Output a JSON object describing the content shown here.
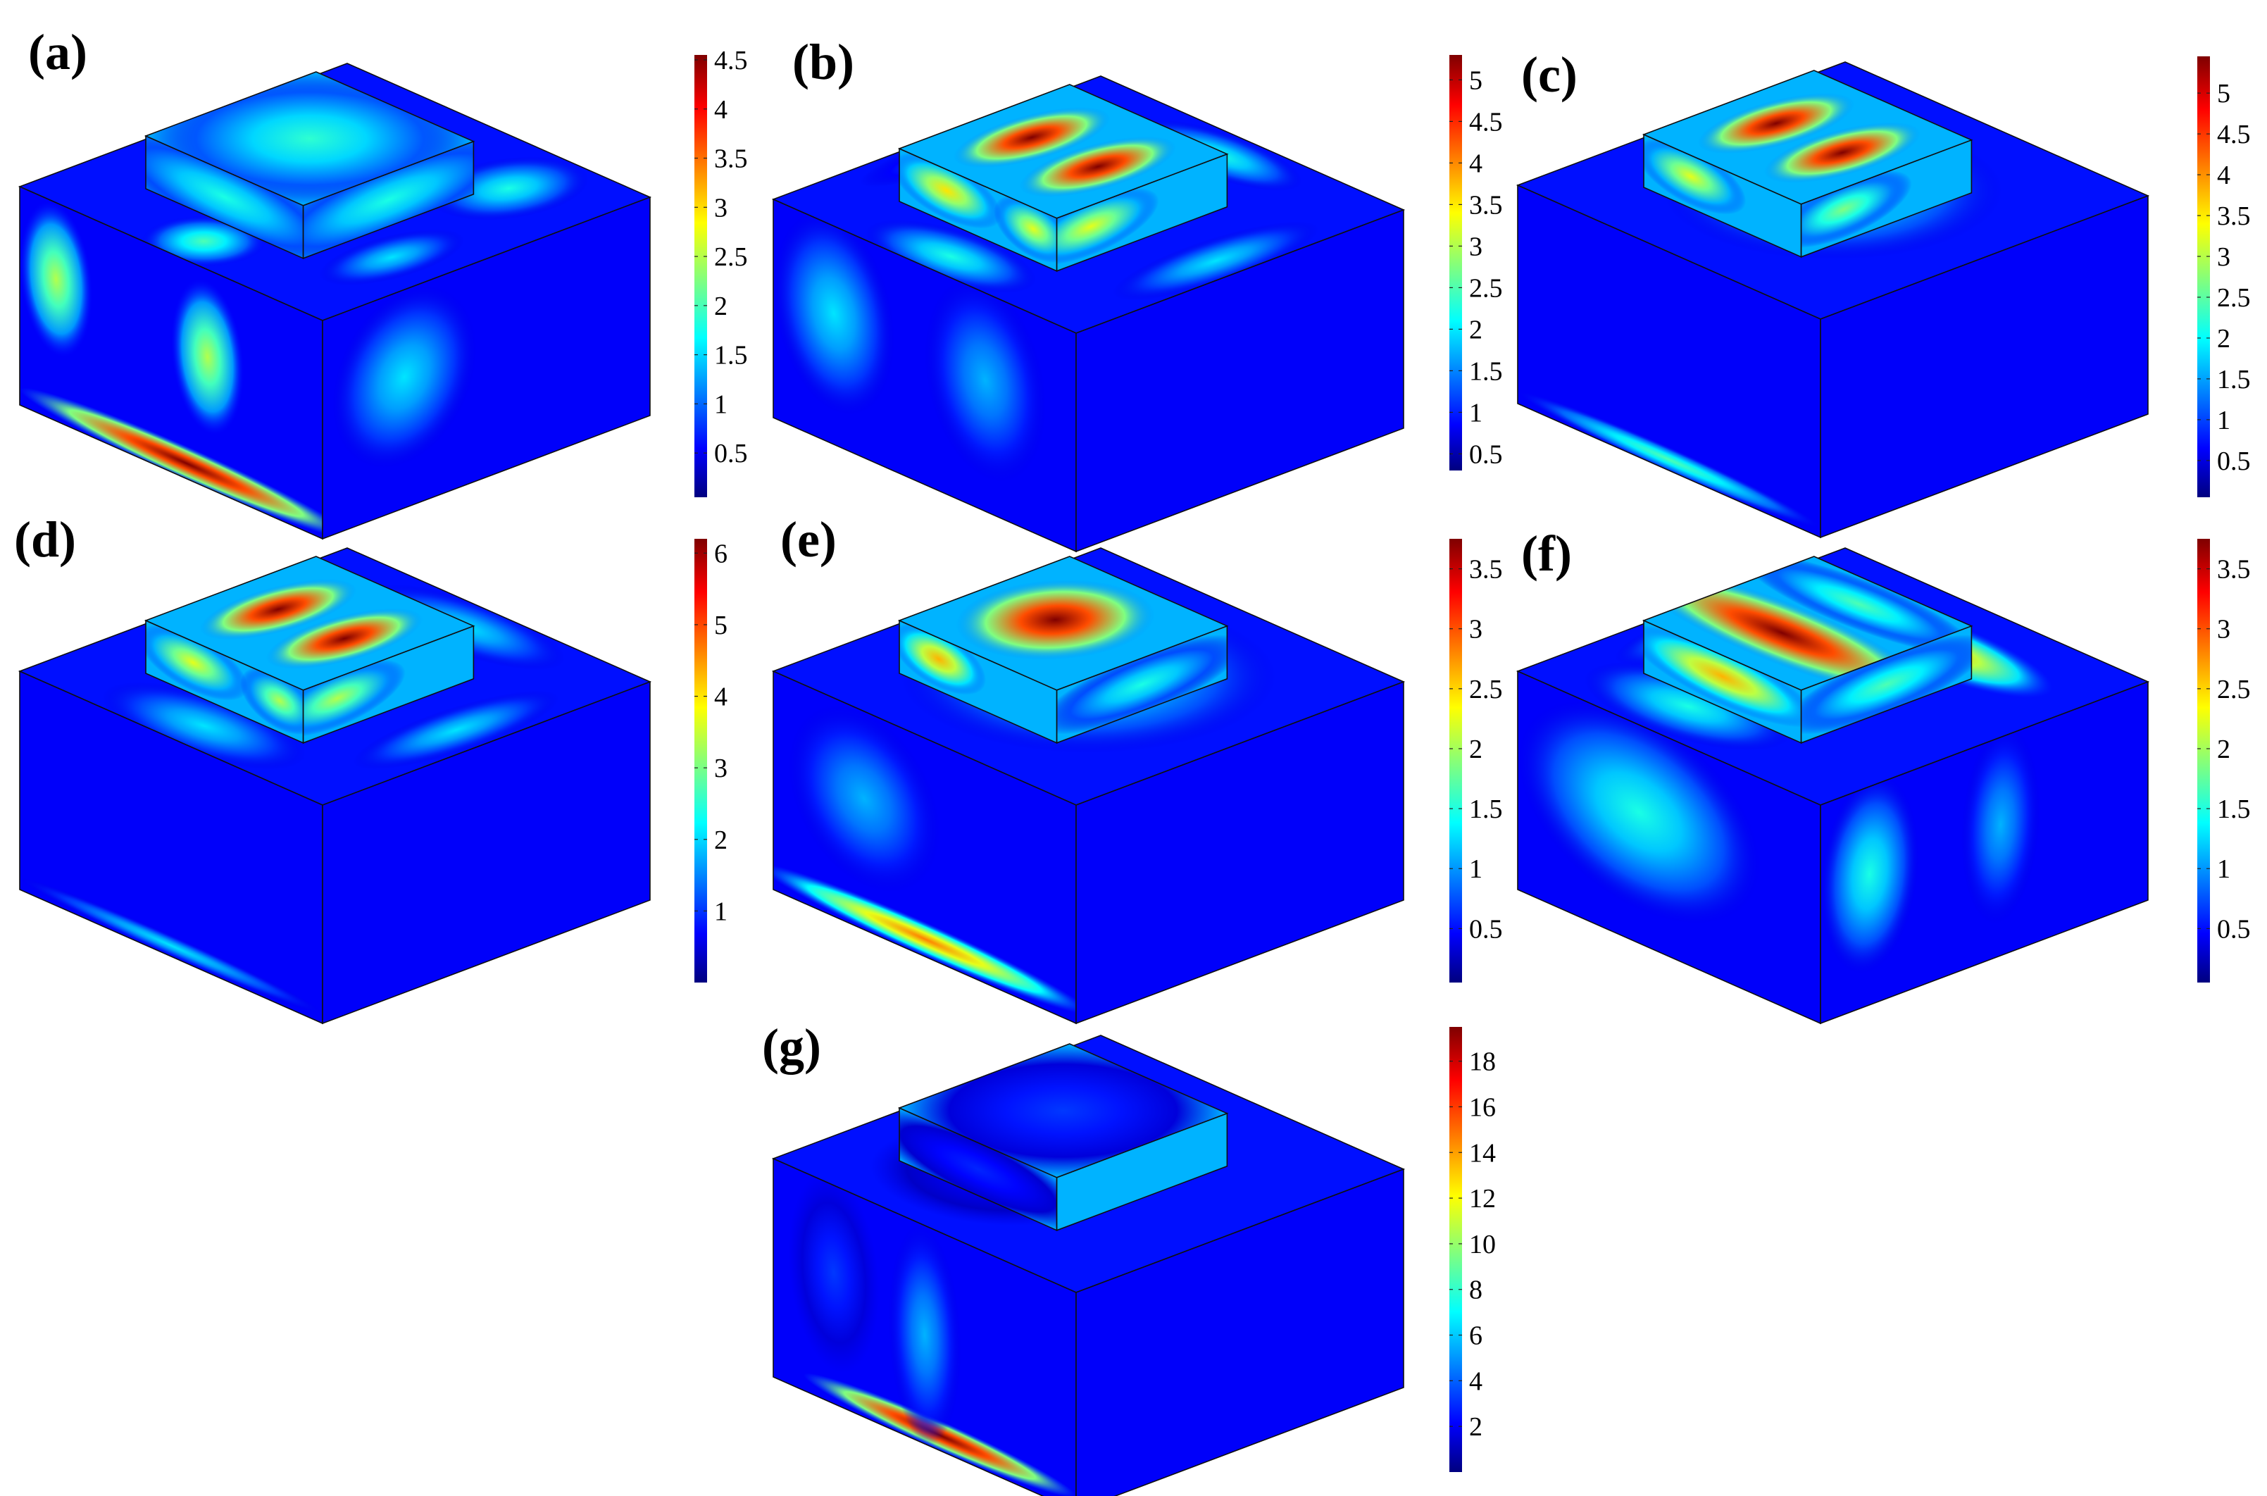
{
  "panels": [
    {
      "label": "(a)",
      "colorbar": {
        "ticks": [
          "0.5",
          "1",
          "1.5",
          "2",
          "2.5",
          "3",
          "3.5",
          "4",
          "4.5"
        ],
        "min": 0.05,
        "max": 4.55
      },
      "fields": [
        {
          "face": "base_top",
          "u": 0.1,
          "v": 0.5,
          "rx": 0.14,
          "ry": 0.14,
          "level": 0.45
        },
        {
          "face": "base_top",
          "u": 0.55,
          "v": 0.15,
          "rx": 0.25,
          "ry": 0.12,
          "level": 0.4
        },
        {
          "face": "base_top",
          "u": 0.8,
          "v": 0.75,
          "rx": 0.2,
          "ry": 0.15,
          "level": 0.4
        },
        {
          "face": "base_top",
          "u": 0.35,
          "v": 0.85,
          "rx": 0.2,
          "ry": 0.1,
          "level": 0.35
        },
        {
          "face": "base_left",
          "u": 0.12,
          "v": 0.35,
          "rx": 0.12,
          "ry": 0.35,
          "level": 0.55
        },
        {
          "face": "base_left",
          "u": 0.62,
          "v": 0.4,
          "rx": 0.12,
          "ry": 0.35,
          "level": 0.55
        },
        {
          "face": "base_left",
          "u": 0.55,
          "v": 0.93,
          "rx": 0.55,
          "ry": 0.08,
          "level": 1.0
        },
        {
          "face": "base_right",
          "u": 0.25,
          "v": 0.4,
          "rx": 0.22,
          "ry": 0.4,
          "level": 0.35
        },
        {
          "face": "block_top",
          "u": 0.5,
          "v": 0.5,
          "rx": 0.7,
          "ry": 0.7,
          "level": 0.42
        },
        {
          "face": "block_left",
          "u": 0.5,
          "v": 0.5,
          "rx": 0.8,
          "ry": 0.8,
          "level": 0.4
        },
        {
          "face": "block_right",
          "u": 0.5,
          "v": 0.5,
          "rx": 0.8,
          "ry": 0.8,
          "level": 0.4
        }
      ]
    },
    {
      "label": "(b)",
      "colorbar": {
        "ticks": [
          "0.5",
          "1",
          "1.5",
          "2",
          "2.5",
          "3",
          "3.5",
          "4",
          "4.5",
          "5"
        ],
        "min": 0.3,
        "max": 5.3
      },
      "fields": [
        {
          "face": "block_top",
          "u": 0.5,
          "v": 0.3,
          "rx": 0.42,
          "ry": 0.2,
          "level": 1.0
        },
        {
          "face": "block_top",
          "u": 0.5,
          "v": 0.72,
          "rx": 0.42,
          "ry": 0.2,
          "level": 1.0
        },
        {
          "face": "block_left",
          "u": 0.3,
          "v": 0.4,
          "rx": 0.35,
          "ry": 0.55,
          "level": 0.65
        },
        {
          "face": "block_left",
          "u": 0.85,
          "v": 0.4,
          "rx": 0.25,
          "ry": 0.55,
          "level": 0.6
        },
        {
          "face": "block_right",
          "u": 0.2,
          "v": 0.4,
          "rx": 0.4,
          "ry": 0.55,
          "level": 0.6
        },
        {
          "face": "base_top",
          "u": 0.08,
          "v": 0.5,
          "rx": 0.12,
          "ry": 0.25,
          "level": 0.4
        },
        {
          "face": "base_top",
          "u": 0.9,
          "v": 0.5,
          "rx": 0.1,
          "ry": 0.25,
          "level": 0.4
        },
        {
          "face": "base_top",
          "u": 0.5,
          "v": 0.92,
          "rx": 0.3,
          "ry": 0.1,
          "level": 0.35
        },
        {
          "face": "base_top",
          "u": 0.5,
          "v": 0.08,
          "rx": 0.3,
          "ry": 0.08,
          "level": 0.25
        },
        {
          "face": "base_left",
          "u": 0.2,
          "v": 0.4,
          "rx": 0.2,
          "ry": 0.45,
          "level": 0.35
        },
        {
          "face": "base_left",
          "u": 0.7,
          "v": 0.4,
          "rx": 0.2,
          "ry": 0.45,
          "level": 0.3
        }
      ]
    },
    {
      "label": "(c)",
      "colorbar": {
        "ticks": [
          "0.5",
          "1",
          "1.5",
          "2",
          "2.5",
          "3",
          "3.5",
          "4",
          "4.5",
          "5"
        ],
        "min": 0.05,
        "max": 5.45
      },
      "fields": [
        {
          "face": "block_top",
          "u": 0.5,
          "v": 0.3,
          "rx": 0.42,
          "ry": 0.2,
          "level": 1.0
        },
        {
          "face": "block_top",
          "u": 0.5,
          "v": 0.72,
          "rx": 0.42,
          "ry": 0.2,
          "level": 1.0
        },
        {
          "face": "block_left",
          "u": 0.3,
          "v": 0.4,
          "rx": 0.35,
          "ry": 0.55,
          "level": 0.6
        },
        {
          "face": "block_right",
          "u": 0.25,
          "v": 0.4,
          "rx": 0.4,
          "ry": 0.55,
          "level": 0.5
        },
        {
          "face": "base_top",
          "u": 0.5,
          "v": 0.5,
          "rx": 0.38,
          "ry": 0.38,
          "level": 0.4
        },
        {
          "face": "base_left",
          "u": 0.5,
          "v": 0.95,
          "rx": 0.5,
          "ry": 0.06,
          "level": 0.45
        }
      ]
    },
    {
      "label": "(d)",
      "colorbar": {
        "ticks": [
          "1",
          "2",
          "3",
          "4",
          "5",
          "6"
        ],
        "min": 0.0,
        "max": 6.2
      },
      "fields": [
        {
          "face": "block_top",
          "u": 0.5,
          "v": 0.3,
          "rx": 0.42,
          "ry": 0.2,
          "level": 1.0
        },
        {
          "face": "block_top",
          "u": 0.5,
          "v": 0.72,
          "rx": 0.42,
          "ry": 0.2,
          "level": 1.0
        },
        {
          "face": "block_left",
          "u": 0.3,
          "v": 0.4,
          "rx": 0.35,
          "ry": 0.55,
          "level": 0.6
        },
        {
          "face": "block_left",
          "u": 0.85,
          "v": 0.4,
          "rx": 0.25,
          "ry": 0.55,
          "level": 0.55
        },
        {
          "face": "block_right",
          "u": 0.2,
          "v": 0.4,
          "rx": 0.4,
          "ry": 0.55,
          "level": 0.55
        },
        {
          "face": "base_top",
          "u": 0.1,
          "v": 0.5,
          "rx": 0.14,
          "ry": 0.3,
          "level": 0.35
        },
        {
          "face": "base_top",
          "u": 0.9,
          "v": 0.5,
          "rx": 0.12,
          "ry": 0.3,
          "level": 0.35
        },
        {
          "face": "base_top",
          "u": 0.5,
          "v": 0.9,
          "rx": 0.3,
          "ry": 0.1,
          "level": 0.35
        },
        {
          "face": "base_left",
          "u": 0.5,
          "v": 0.95,
          "rx": 0.5,
          "ry": 0.05,
          "level": 0.35
        }
      ]
    },
    {
      "label": "(e)",
      "colorbar": {
        "ticks": [
          "0.5",
          "1",
          "1.5",
          "2",
          "2.5",
          "3",
          "3.5"
        ],
        "min": 0.05,
        "max": 3.75
      },
      "fields": [
        {
          "face": "block_top",
          "u": 0.5,
          "v": 0.45,
          "rx": 0.45,
          "ry": 0.4,
          "level": 1.0
        },
        {
          "face": "block_left",
          "u": 0.25,
          "v": 0.4,
          "rx": 0.3,
          "ry": 0.55,
          "level": 0.7
        },
        {
          "face": "block_right",
          "u": 0.5,
          "v": 0.5,
          "rx": 0.6,
          "ry": 0.6,
          "level": 0.4
        },
        {
          "face": "base_top",
          "u": 0.5,
          "v": 0.5,
          "rx": 0.42,
          "ry": 0.42,
          "level": 0.4
        },
        {
          "face": "base_left",
          "u": 0.5,
          "v": 0.92,
          "rx": 0.55,
          "ry": 0.08,
          "level": 0.75
        },
        {
          "face": "base_left",
          "u": 0.3,
          "v": 0.4,
          "rx": 0.25,
          "ry": 0.4,
          "level": 0.3
        }
      ]
    },
    {
      "label": "(f)",
      "colorbar": {
        "ticks": [
          "0.5",
          "1",
          "1.5",
          "2",
          "2.5",
          "3",
          "3.5"
        ],
        "min": 0.05,
        "max": 3.75
      },
      "fields": [
        {
          "face": "block_top",
          "u": 0.35,
          "v": 0.5,
          "rx": 0.25,
          "ry": 0.9,
          "level": 1.0
        },
        {
          "face": "block_top",
          "u": 0.8,
          "v": 0.5,
          "rx": 0.2,
          "ry": 0.7,
          "level": 0.45
        },
        {
          "face": "block_left",
          "u": 0.5,
          "v": 0.4,
          "rx": 0.6,
          "ry": 0.55,
          "level": 0.7
        },
        {
          "face": "block_right",
          "u": 0.5,
          "v": 0.5,
          "rx": 0.6,
          "ry": 0.6,
          "level": 0.45
        },
        {
          "face": "base_top",
          "u": 0.78,
          "v": 0.55,
          "rx": 0.12,
          "ry": 0.35,
          "level": 0.7
        },
        {
          "face": "base_top",
          "u": 0.15,
          "v": 0.4,
          "rx": 0.15,
          "ry": 0.3,
          "level": 0.4
        },
        {
          "face": "base_top",
          "u": 0.5,
          "v": 0.12,
          "rx": 0.3,
          "ry": 0.1,
          "level": 0.4
        },
        {
          "face": "base_left",
          "u": 0.4,
          "v": 0.4,
          "rx": 0.4,
          "ry": 0.45,
          "level": 0.4
        },
        {
          "face": "base_right",
          "u": 0.15,
          "v": 0.4,
          "rx": 0.15,
          "ry": 0.45,
          "level": 0.4
        },
        {
          "face": "base_right",
          "u": 0.55,
          "v": 0.4,
          "rx": 0.12,
          "ry": 0.45,
          "level": 0.3
        }
      ]
    },
    {
      "label": "(g)",
      "colorbar": {
        "ticks": [
          "2",
          "4",
          "6",
          "8",
          "10",
          "12",
          "14",
          "16",
          "18"
        ],
        "min": 0.0,
        "max": 19.5
      },
      "fields": [
        {
          "face": "block_top",
          "u": 0.5,
          "v": 0.5,
          "rx": 0.7,
          "ry": 0.7,
          "level": 0.18
        },
        {
          "face": "block_left",
          "u": 0.5,
          "v": 0.5,
          "rx": 0.7,
          "ry": 0.7,
          "level": 0.16
        },
        {
          "face": "base_top",
          "u": 0.3,
          "v": 0.4,
          "rx": 0.25,
          "ry": 0.3,
          "level": 0.14
        },
        {
          "face": "base_left",
          "u": 0.55,
          "v": 0.93,
          "rx": 0.45,
          "ry": 0.07,
          "level": 1.0
        },
        {
          "face": "base_left",
          "u": 0.5,
          "v": 0.5,
          "rx": 0.12,
          "ry": 0.5,
          "level": 0.3
        },
        {
          "face": "base_left",
          "u": 0.2,
          "v": 0.4,
          "rx": 0.15,
          "ry": 0.45,
          "level": 0.18
        }
      ]
    }
  ]
}
